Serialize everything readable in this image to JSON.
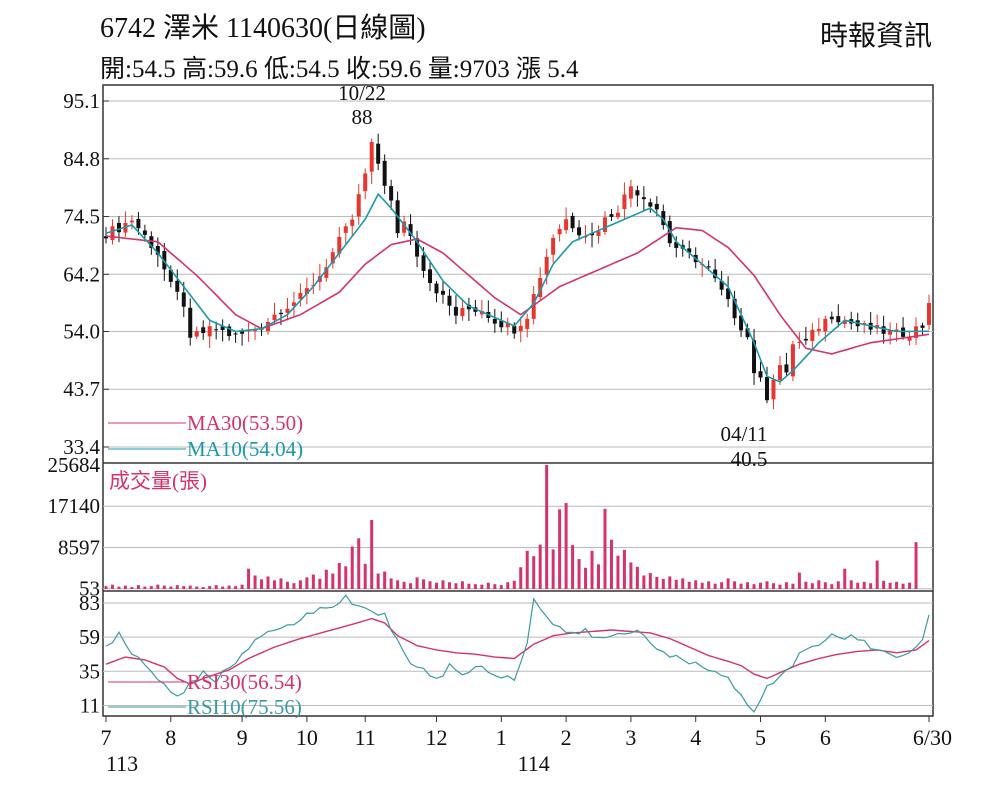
{
  "header": {
    "title": "6742  澤米 1140630(日線圖)",
    "quote": "開:54.5 高:59.6 低:54.5 收:59.6 量:9703 漲 5.4",
    "source": "時報資訊"
  },
  "colors": {
    "up": "#e8352e",
    "down": "#111111",
    "ma30": "#d6336c",
    "ma10": "#1a9aaa",
    "volume": "#d6336c",
    "rsi30": "#d6336c",
    "rsi10": "#3a9aa6",
    "grid": "#bbbbbb"
  },
  "chart_data": [
    {
      "type": "candlestick",
      "y_ticks": [
        "95.1",
        "84.8",
        "74.5",
        "64.2",
        "54.0",
        "43.7",
        "33.4"
      ],
      "y_tick_values": [
        95.1,
        84.8,
        74.5,
        64.2,
        54.0,
        43.7,
        33.4
      ],
      "ylim": [
        33.4,
        95.1
      ],
      "legend": [
        "MA30(53.50)",
        "MA10(54.04)"
      ],
      "annotations": [
        {
          "date": "10/22",
          "value": "88"
        },
        {
          "date": "04/11",
          "value": "40.5"
        }
      ],
      "series": [
        {
          "name": "MA30",
          "last": 53.5
        },
        {
          "name": "MA10",
          "last": 54.04
        }
      ],
      "close_path": [
        [
          0,
          71.5
        ],
        [
          2,
          72.5
        ],
        [
          4,
          74
        ],
        [
          6,
          71
        ],
        [
          8,
          68
        ],
        [
          10,
          62
        ],
        [
          12,
          59
        ],
        [
          13,
          52
        ],
        [
          14,
          53.5
        ],
        [
          17,
          54.5
        ],
        [
          20,
          53
        ],
        [
          24,
          55
        ],
        [
          27,
          58
        ],
        [
          30,
          60
        ],
        [
          33,
          64
        ],
        [
          36,
          70
        ],
        [
          38,
          74
        ],
        [
          40,
          82
        ],
        [
          41,
          87
        ],
        [
          42,
          84
        ],
        [
          44,
          77
        ],
        [
          45,
          71
        ],
        [
          46,
          74
        ],
        [
          48,
          68
        ],
        [
          50,
          63
        ],
        [
          52,
          60
        ],
        [
          54,
          57
        ],
        [
          56,
          58
        ],
        [
          58,
          58
        ],
        [
          60,
          56
        ],
        [
          62,
          55
        ],
        [
          63,
          54.5
        ],
        [
          65,
          57
        ],
        [
          67,
          64
        ],
        [
          69,
          71
        ],
        [
          71,
          74
        ],
        [
          73,
          72
        ],
        [
          75,
          71
        ],
        [
          77,
          74
        ],
        [
          79,
          76
        ],
        [
          81,
          80
        ],
        [
          83,
          78
        ],
        [
          85,
          76
        ],
        [
          87,
          70
        ],
        [
          89,
          68
        ],
        [
          91,
          67
        ],
        [
          93,
          65
        ],
        [
          95,
          61
        ],
        [
          97,
          57
        ],
        [
          99,
          53
        ],
        [
          100,
          47
        ],
        [
          101,
          45
        ],
        [
          102,
          42.5
        ],
        [
          103,
          46
        ],
        [
          104,
          48
        ],
        [
          105,
          46
        ],
        [
          106,
          52
        ],
        [
          108,
          52
        ],
        [
          110,
          55
        ],
        [
          112,
          57
        ],
        [
          114,
          56
        ],
        [
          116,
          55
        ],
        [
          118,
          54.5
        ],
        [
          120,
          54
        ],
        [
          122,
          53.5
        ],
        [
          124,
          54
        ],
        [
          126,
          55
        ],
        [
          127,
          59.6
        ]
      ],
      "ma30_path": [
        [
          0,
          71
        ],
        [
          8,
          70
        ],
        [
          14,
          64
        ],
        [
          20,
          57
        ],
        [
          24,
          54.5
        ],
        [
          30,
          57
        ],
        [
          36,
          61
        ],
        [
          40,
          66
        ],
        [
          44,
          69.5
        ],
        [
          48,
          70.5
        ],
        [
          52,
          68
        ],
        [
          56,
          64
        ],
        [
          60,
          60
        ],
        [
          64,
          57
        ],
        [
          70,
          62
        ],
        [
          76,
          65
        ],
        [
          82,
          68
        ],
        [
          88,
          72.5
        ],
        [
          92,
          72
        ],
        [
          96,
          69
        ],
        [
          100,
          64
        ],
        [
          104,
          57
        ],
        [
          108,
          51
        ],
        [
          112,
          50
        ],
        [
          118,
          52
        ],
        [
          124,
          53
        ],
        [
          127,
          53.5
        ]
      ],
      "ma10_path": [
        [
          0,
          71.5
        ],
        [
          4,
          73
        ],
        [
          8,
          68
        ],
        [
          12,
          62
        ],
        [
          16,
          56
        ],
        [
          20,
          54
        ],
        [
          24,
          54.5
        ],
        [
          28,
          57
        ],
        [
          32,
          62
        ],
        [
          36,
          68
        ],
        [
          40,
          74
        ],
        [
          42,
          78.5
        ],
        [
          44,
          76
        ],
        [
          48,
          70
        ],
        [
          52,
          63
        ],
        [
          56,
          58.5
        ],
        [
          60,
          56.5
        ],
        [
          63,
          55
        ],
        [
          66,
          59
        ],
        [
          69,
          66
        ],
        [
          72,
          70
        ],
        [
          76,
          72
        ],
        [
          80,
          74
        ],
        [
          84,
          76
        ],
        [
          86,
          74
        ],
        [
          88,
          70
        ],
        [
          92,
          66
        ],
        [
          96,
          62
        ],
        [
          100,
          52
        ],
        [
          102,
          46
        ],
        [
          104,
          45
        ],
        [
          106,
          47
        ],
        [
          110,
          52
        ],
        [
          114,
          56
        ],
        [
          118,
          55
        ],
        [
          122,
          54
        ],
        [
          127,
          54.04
        ]
      ]
    },
    {
      "type": "bar",
      "title": "成交量(張)",
      "y_ticks": [
        "25684",
        "17140",
        "8597",
        "53"
      ],
      "y_tick_values": [
        25684,
        17140,
        8597,
        53
      ],
      "ylim": [
        0,
        25684
      ],
      "values": [
        600,
        900,
        500,
        700,
        400,
        800,
        500,
        600,
        900,
        700,
        500,
        800,
        600,
        700,
        500,
        400,
        600,
        800,
        500,
        700,
        600,
        900,
        4200,
        2800,
        2000,
        2600,
        1800,
        2200,
        1500,
        1200,
        1800,
        2400,
        3000,
        2100,
        4000,
        3200,
        5400,
        4700,
        8800,
        10500,
        5200,
        14300,
        3200,
        3600,
        2200,
        1800,
        1500,
        1200,
        2400,
        2000,
        1600,
        1300,
        1800,
        1400,
        1200,
        1600,
        1100,
        1000,
        900,
        1300,
        1000,
        800,
        1400,
        1700,
        4500,
        7900,
        6800,
        9200,
        25684,
        8200,
        16500,
        17800,
        9100,
        6200,
        4400,
        7900,
        5100,
        16600,
        10200,
        6900,
        8100,
        5500,
        4600,
        2800,
        3300,
        2500,
        2100,
        2600,
        1900,
        2200,
        1500,
        1800,
        1300,
        1600,
        1100,
        1400,
        2200,
        1600,
        1100,
        1400,
        1000,
        1300,
        1600,
        1200,
        900,
        1400,
        1100,
        3400,
        1500,
        1200,
        1800,
        1400,
        1000,
        1600,
        4200,
        1800,
        1300,
        1500,
        1200,
        5900,
        1700,
        1300,
        1500,
        1100,
        1300,
        9703
      ]
    },
    {
      "type": "line",
      "y_ticks": [
        "83",
        "59",
        "35",
        "11"
      ],
      "y_tick_values": [
        83,
        59,
        35,
        11
      ],
      "ylim": [
        5,
        90
      ],
      "legend": [
        "RSI30(56.54)",
        "RSI10(75.56)"
      ],
      "series": [
        {
          "name": "RSI30",
          "last": 56.54,
          "points": [
            [
              0,
              40
            ],
            [
              3,
              45
            ],
            [
              6,
              43
            ],
            [
              9,
              38
            ],
            [
              11,
              30
            ],
            [
              13,
              26
            ],
            [
              15,
              30
            ],
            [
              17,
              33
            ],
            [
              19,
              36
            ],
            [
              22,
              44
            ],
            [
              26,
              52
            ],
            [
              30,
              58
            ],
            [
              34,
              63
            ],
            [
              38,
              68
            ],
            [
              41,
              72
            ],
            [
              43,
              69
            ],
            [
              45,
              60
            ],
            [
              48,
              53
            ],
            [
              51,
              50
            ],
            [
              54,
              48
            ],
            [
              57,
              47
            ],
            [
              60,
              45
            ],
            [
              63,
              44
            ],
            [
              66,
              54
            ],
            [
              69,
              60
            ],
            [
              72,
              62
            ],
            [
              75,
              63
            ],
            [
              78,
              64
            ],
            [
              81,
              63
            ],
            [
              84,
              62
            ],
            [
              87,
              58
            ],
            [
              90,
              52
            ],
            [
              93,
              46
            ],
            [
              96,
              42
            ],
            [
              98,
              39
            ],
            [
              100,
              33
            ],
            [
              102,
              30
            ],
            [
              104,
              34
            ],
            [
              107,
              40
            ],
            [
              110,
              44
            ],
            [
              113,
              47
            ],
            [
              116,
              49
            ],
            [
              119,
              50
            ],
            [
              122,
              48
            ],
            [
              125,
              50
            ],
            [
              127,
              56.54
            ]
          ]
        },
        {
          "name": "RSI10",
          "last": 75.56,
          "points": [
            [
              0,
              54
            ],
            [
              2,
              60
            ],
            [
              4,
              48
            ],
            [
              6,
              40
            ],
            [
              8,
              30
            ],
            [
              10,
              22
            ],
            [
              12,
              18
            ],
            [
              13,
              26
            ],
            [
              15,
              33
            ],
            [
              17,
              29
            ],
            [
              19,
              37
            ],
            [
              21,
              48
            ],
            [
              23,
              58
            ],
            [
              26,
              62
            ],
            [
              29,
              70
            ],
            [
              32,
              76
            ],
            [
              35,
              82
            ],
            [
              37,
              86
            ],
            [
              40,
              80
            ],
            [
              43,
              74
            ],
            [
              45,
              56
            ],
            [
              47,
              42
            ],
            [
              49,
              35
            ],
            [
              51,
              30
            ],
            [
              53,
              38
            ],
            [
              55,
              33
            ],
            [
              57,
              39
            ],
            [
              59,
              35
            ],
            [
              61,
              32
            ],
            [
              63,
              30
            ],
            [
              65,
              56
            ],
            [
              66,
              86
            ],
            [
              68,
              72
            ],
            [
              70,
              66
            ],
            [
              72,
              60
            ],
            [
              74,
              63
            ],
            [
              76,
              58
            ],
            [
              79,
              60
            ],
            [
              82,
              64
            ],
            [
              84,
              56
            ],
            [
              86,
              50
            ],
            [
              88,
              44
            ],
            [
              90,
              40
            ],
            [
              92,
              38
            ],
            [
              94,
              34
            ],
            [
              96,
              32
            ],
            [
              97,
              22
            ],
            [
              99,
              12
            ],
            [
              100,
              7
            ],
            [
              102,
              24
            ],
            [
              104,
              30
            ],
            [
              106,
              40
            ],
            [
              108,
              52
            ],
            [
              110,
              55
            ],
            [
              112,
              62
            ],
            [
              114,
              60
            ],
            [
              116,
              58
            ],
            [
              118,
              52
            ],
            [
              120,
              48
            ],
            [
              122,
              46
            ],
            [
              124,
              50
            ],
            [
              126,
              56
            ],
            [
              127,
              75.56
            ]
          ]
        }
      ]
    }
  ],
  "x_axis": {
    "labels": [
      "7",
      "8",
      "9",
      "10",
      "11",
      "12",
      "1",
      "2",
      "3",
      "4",
      "5",
      "6",
      "6/30"
    ],
    "label_days": [
      0,
      10,
      21,
      31,
      40,
      51,
      61,
      71,
      81,
      91,
      101,
      111,
      127
    ],
    "year_labels": [
      {
        "text": "113",
        "day": 0
      },
      {
        "text": "114",
        "day": 66
      }
    ]
  }
}
